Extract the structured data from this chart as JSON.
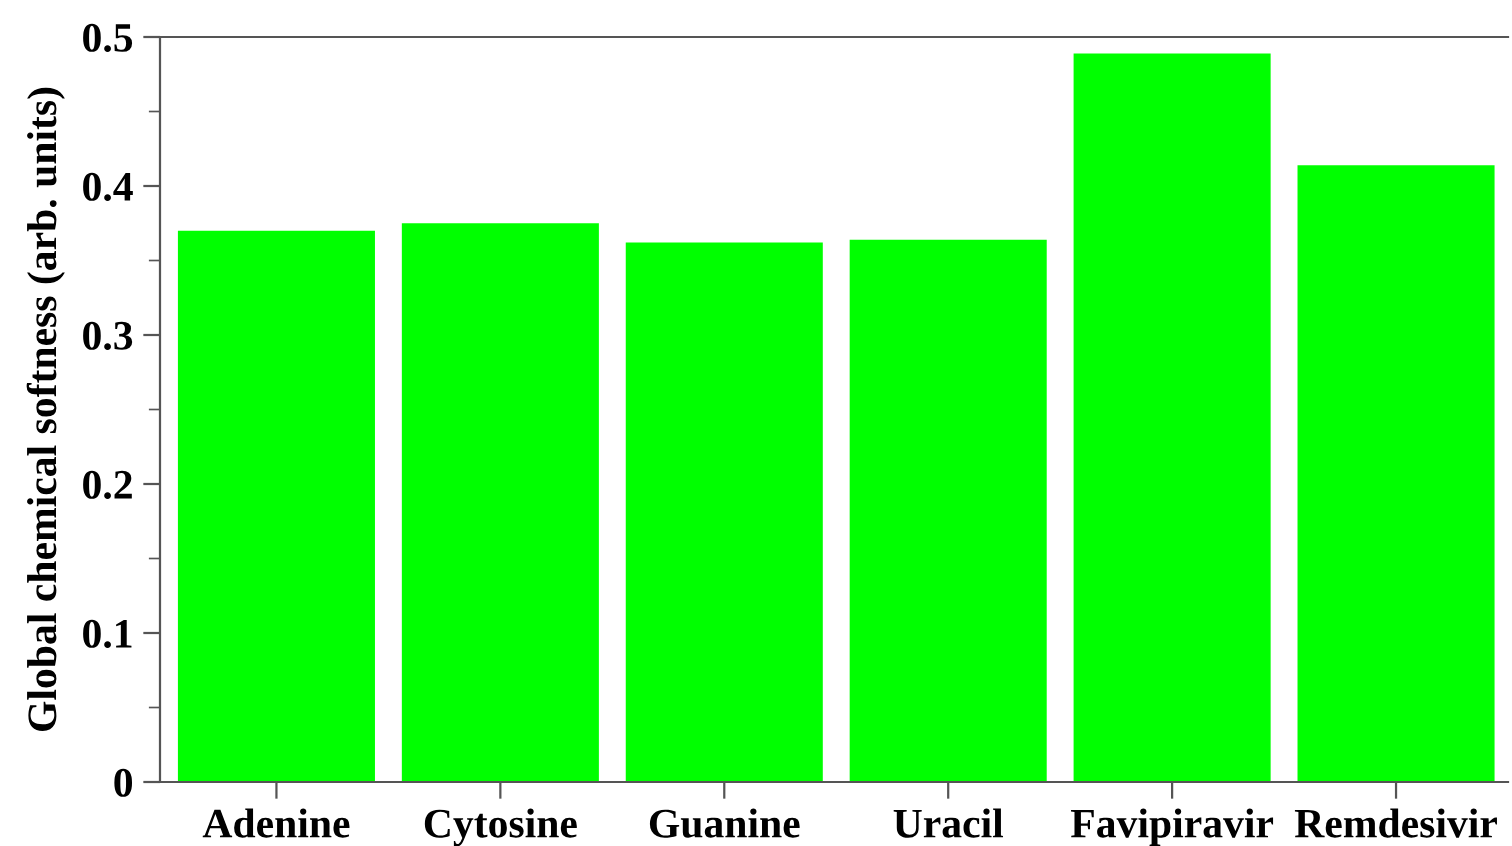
{
  "chart_data": {
    "type": "bar",
    "ylabel": "Global chemical softness (arb. units)",
    "categories": [
      "Adenine",
      "Cytosine",
      "Guanine",
      "Uracil",
      "Favipiravir",
      "Remdesivir"
    ],
    "values": [
      0.37,
      0.375,
      0.362,
      0.364,
      0.489,
      0.414
    ],
    "color": "#00ff00",
    "ylim": [
      0,
      0.5
    ],
    "yticks": [
      0,
      0.1,
      0.2,
      0.3,
      0.4,
      0.5
    ],
    "grid": false
  }
}
